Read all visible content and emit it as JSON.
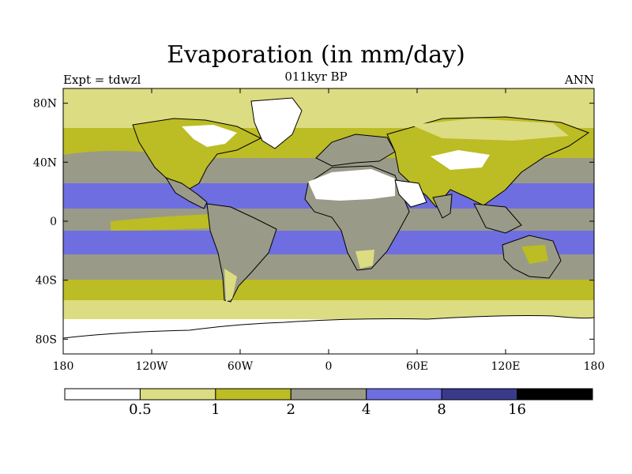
{
  "header": {
    "title": "Evaporation (in mm/day)",
    "subtitle": "011kyr BP",
    "left_label": "Expt = tdwzl",
    "right_label": "ANN"
  },
  "chart_data": {
    "type": "heatmap",
    "title": "Evaporation (in mm/day)",
    "subtitle": "011kyr BP",
    "experiment": "Expt = tdwzl",
    "season": "ANN",
    "projection": "cylindrical equidistant",
    "x_range": [
      -180,
      180
    ],
    "y_range": [
      -90,
      90
    ],
    "x_ticks": [
      {
        "value": -180,
        "label": "180"
      },
      {
        "value": -120,
        "label": "120W"
      },
      {
        "value": -60,
        "label": "60W"
      },
      {
        "value": 0,
        "label": "0"
      },
      {
        "value": 60,
        "label": "60E"
      },
      {
        "value": 120,
        "label": "120E"
      },
      {
        "value": 180,
        "label": "180"
      }
    ],
    "y_ticks": [
      {
        "value": 80,
        "label": "80N"
      },
      {
        "value": 40,
        "label": "40N"
      },
      {
        "value": 0,
        "label": "0"
      },
      {
        "value": -40,
        "label": "40S"
      },
      {
        "value": -80,
        "label": "80S"
      }
    ],
    "colorbar": {
      "levels": [
        "0.5",
        "1",
        "2",
        "4",
        "8",
        "16"
      ],
      "colors": [
        "#ffffff",
        "#dcdc82",
        "#bcbc24",
        "#9a9a88",
        "#6e6ee0",
        "#3a3a8c",
        "#000000"
      ]
    }
  }
}
